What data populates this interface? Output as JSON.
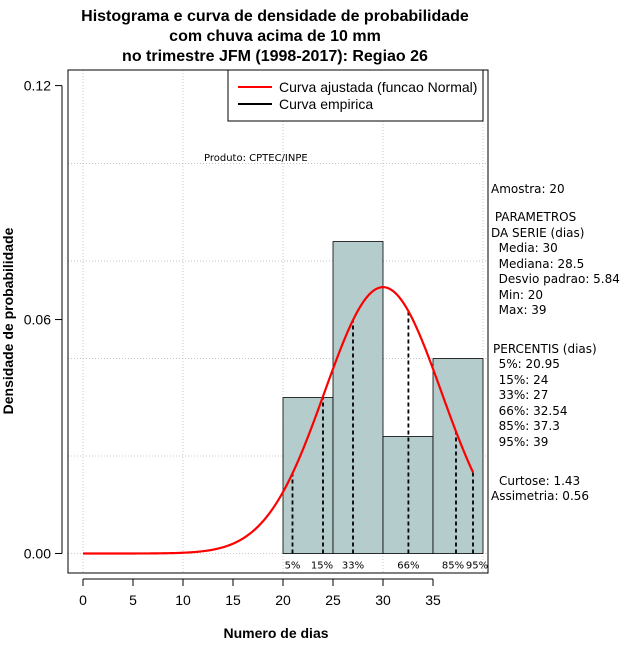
{
  "chart_data": {
    "type": "histogram",
    "title_lines": [
      "Histograma e curva de densidade de probabilidade",
      "com chuva acima de 10 mm",
      "no trimestre JFM (1998-2017): Regiao 26"
    ],
    "xlabel": "Numero de dias",
    "ylabel": "Densidade de probabilidade",
    "xlim": [
      -1.5,
      40.5
    ],
    "ylim": [
      -0.005,
      0.124
    ],
    "xticks": [
      0,
      5,
      10,
      15,
      20,
      25,
      30,
      35
    ],
    "yticks": [
      0.0,
      0.06,
      0.12
    ],
    "ytick_labels": [
      "0.00",
      "0.06",
      "0.12"
    ],
    "grid": true,
    "bins": [
      {
        "start": 20,
        "end": 25,
        "density": 0.04
      },
      {
        "start": 25,
        "end": 30,
        "density": 0.08
      },
      {
        "start": 30,
        "end": 35,
        "density": 0.03
      },
      {
        "start": 35,
        "end": 40,
        "density": 0.05
      }
    ],
    "normal_fit": {
      "mean": 30,
      "sd": 5.84,
      "x_range": [
        0,
        39
      ]
    },
    "percentile_lines": [
      {
        "label": "5%",
        "x": 20.95
      },
      {
        "label": "15%",
        "x": 24
      },
      {
        "label": "33%",
        "x": 27
      },
      {
        "label": "66%",
        "x": 32.54
      },
      {
        "label": "85%",
        "x": 37.3
      },
      {
        "label": "95%",
        "x": 39
      }
    ],
    "legend": {
      "position": "top-right",
      "entries": [
        {
          "label": "Curva ajustada (funcao Normal)",
          "color": "#ff0000"
        },
        {
          "label": "Curva empirica",
          "color": "#000000"
        }
      ]
    },
    "annotation": "Produto: CPTEC/INPE",
    "bar_color": "#b4cccc",
    "curve_color": "#ff0000"
  },
  "stats": {
    "amostra": "Amostra: 20",
    "parametros_title": " PARAMETROS\nDA SERIE (dias)",
    "parametros_lines": [
      "  Media: 30",
      "  Mediana: 28.5",
      "  Desvio padrao: 5.84",
      "  Min: 20",
      "  Max: 39"
    ],
    "percentis_title": "PERCENTIS (dias)",
    "percentis_lines": [
      "  5%: 20.95",
      "  15%: 24",
      "  33%: 27",
      "  66%: 32.54",
      "  85%: 37.3",
      "  95%: 39"
    ],
    "curtose": "Curtose: 1.43",
    "assimetria": "Assimetria: 0.56"
  }
}
